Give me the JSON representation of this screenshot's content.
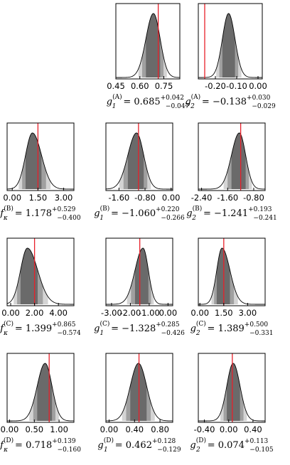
{
  "figure": {
    "panels": [
      {
        "id": "gA1",
        "sym": "g",
        "sub": "1",
        "sup": "(A)",
        "value": "0.685",
        "plus": "+0.042",
        "minus": "−0.047",
        "ticks": [
          "0.45",
          "0.60",
          "0.75"
        ]
      },
      {
        "id": "gA2",
        "sym": "g",
        "sub": "2",
        "sup": "(A)",
        "value": "−0.138",
        "plus": "+0.030",
        "minus": "−0.029",
        "ticks": [
          "-0.20",
          "-0.10",
          "0.00"
        ]
      },
      {
        "id": "fB",
        "sym": "f",
        "sub": "κ",
        "sup": "(B)",
        "value": "1.178",
        "plus": "+0.529",
        "minus": "−0.400",
        "ticks": [
          "0.00",
          "1.50",
          "3.00"
        ]
      },
      {
        "id": "gB1",
        "sym": "g",
        "sub": "1",
        "sup": "(B)",
        "value": "−1.060",
        "plus": "+0.220",
        "minus": "−0.266",
        "ticks": [
          "-1.60",
          "-0.80",
          "0.00"
        ]
      },
      {
        "id": "gB2",
        "sym": "g",
        "sub": "2",
        "sup": "(B)",
        "value": "−1.241",
        "plus": "+0.193",
        "minus": "−0.241",
        "ticks": [
          "-2.40",
          "-1.60",
          "-0.80"
        ]
      },
      {
        "id": "fC",
        "sym": "f",
        "sub": "κ",
        "sup": "(C)",
        "value": "1.399",
        "plus": "+0.865",
        "minus": "−0.574",
        "ticks": [
          "0.00",
          "2.00",
          "4.00"
        ]
      },
      {
        "id": "gC1",
        "sym": "g",
        "sub": "1",
        "sup": "(C)",
        "value": "−1.328",
        "plus": "+0.285",
        "minus": "−0.426",
        "ticks": [
          "-3.00",
          "-2.00",
          "-1.00",
          "0.00"
        ]
      },
      {
        "id": "gC2",
        "sym": "g",
        "sub": "2",
        "sup": "(C)",
        "value": "1.389",
        "plus": "+0.500",
        "minus": "−0.331",
        "ticks": [
          "0.00",
          "1.50",
          "3.00"
        ]
      },
      {
        "id": "fD",
        "sym": "f",
        "sub": "κ",
        "sup": "(D)",
        "value": "0.718",
        "plus": "+0.139",
        "minus": "−0.160",
        "ticks": [
          "0.00",
          "0.50",
          "1.00"
        ]
      },
      {
        "id": "gD1",
        "sym": "g",
        "sub": "1",
        "sup": "(D)",
        "value": "0.462",
        "plus": "+0.128",
        "minus": "−0.129",
        "ticks": [
          "0.00",
          "0.40",
          "0.80"
        ]
      },
      {
        "id": "gD2",
        "sym": "g",
        "sub": "2",
        "sup": "(D)",
        "value": "0.074",
        "plus": "+0.113",
        "minus": "−0.105",
        "ticks": [
          "-0.40",
          "0.00",
          "0.40"
        ]
      }
    ]
  },
  "chart_data": [
    {
      "type": "area",
      "panel": "gA1",
      "x_ticks": [
        0.45,
        0.6,
        0.75
      ],
      "xlim": [
        0.45,
        0.85
      ],
      "median": 0.685,
      "err_plus": 0.042,
      "err_minus": 0.047,
      "marker_line": 0.715
    },
    {
      "type": "area",
      "panel": "gA2",
      "x_ticks": [
        -0.2,
        -0.1,
        0.0
      ],
      "xlim": [
        -0.28,
        0.02
      ],
      "median": -0.138,
      "err_plus": 0.03,
      "err_minus": 0.029,
      "marker_line": -0.25
    },
    {
      "type": "area",
      "panel": "fB",
      "x_ticks": [
        0.0,
        1.5,
        3.0
      ],
      "xlim": [
        -0.3,
        3.6
      ],
      "median": 1.178,
      "err_plus": 0.529,
      "err_minus": 0.4,
      "marker_line": 1.5
    },
    {
      "type": "area",
      "panel": "gB1",
      "x_ticks": [
        -1.6,
        -0.8,
        0.0
      ],
      "xlim": [
        -2.0,
        0.05
      ],
      "median": -1.06,
      "err_plus": 0.22,
      "err_minus": 0.266,
      "marker_line": -1.0
    },
    {
      "type": "area",
      "panel": "gB2",
      "x_ticks": [
        -2.4,
        -1.6,
        -0.8
      ],
      "xlim": [
        -2.5,
        -0.45
      ],
      "median": -1.241,
      "err_plus": 0.193,
      "err_minus": 0.241,
      "marker_line": -1.2
    },
    {
      "type": "area",
      "panel": "fC",
      "x_ticks": [
        0.0,
        2.0,
        4.0
      ],
      "xlim": [
        -0.3,
        5.3
      ],
      "median": 1.399,
      "err_plus": 0.865,
      "err_minus": 0.574,
      "marker_line": 2.0
    },
    {
      "type": "area",
      "panel": "gC1",
      "x_ticks": [
        -3.0,
        -2.0,
        -1.0,
        0.0
      ],
      "xlim": [
        -3.3,
        0.25
      ],
      "median": -1.328,
      "err_plus": 0.285,
      "err_minus": 0.426,
      "marker_line": -1.5
    },
    {
      "type": "area",
      "panel": "gC2",
      "x_ticks": [
        0.0,
        1.5,
        3.0
      ],
      "xlim": [
        -0.1,
        4.1
      ],
      "median": 1.389,
      "err_plus": 0.5,
      "err_minus": 0.331,
      "marker_line": 1.5
    },
    {
      "type": "area",
      "panel": "fD",
      "x_ticks": [
        0.0,
        0.5,
        1.0
      ],
      "xlim": [
        -0.05,
        1.3
      ],
      "median": 0.718,
      "err_plus": 0.139,
      "err_minus": 0.16,
      "marker_line": 0.8
    },
    {
      "type": "area",
      "panel": "gD1",
      "x_ticks": [
        0.0,
        0.4,
        0.8
      ],
      "xlim": [
        -0.05,
        1.0
      ],
      "median": 0.462,
      "err_plus": 0.128,
      "err_minus": 0.129,
      "marker_line": 0.47
    },
    {
      "type": "area",
      "panel": "gD2",
      "x_ticks": [
        -0.4,
        0.0,
        0.4
      ],
      "xlim": [
        -0.5,
        0.6
      ],
      "median": 0.074,
      "err_plus": 0.113,
      "err_minus": 0.105,
      "marker_line": 0.06
    }
  ]
}
